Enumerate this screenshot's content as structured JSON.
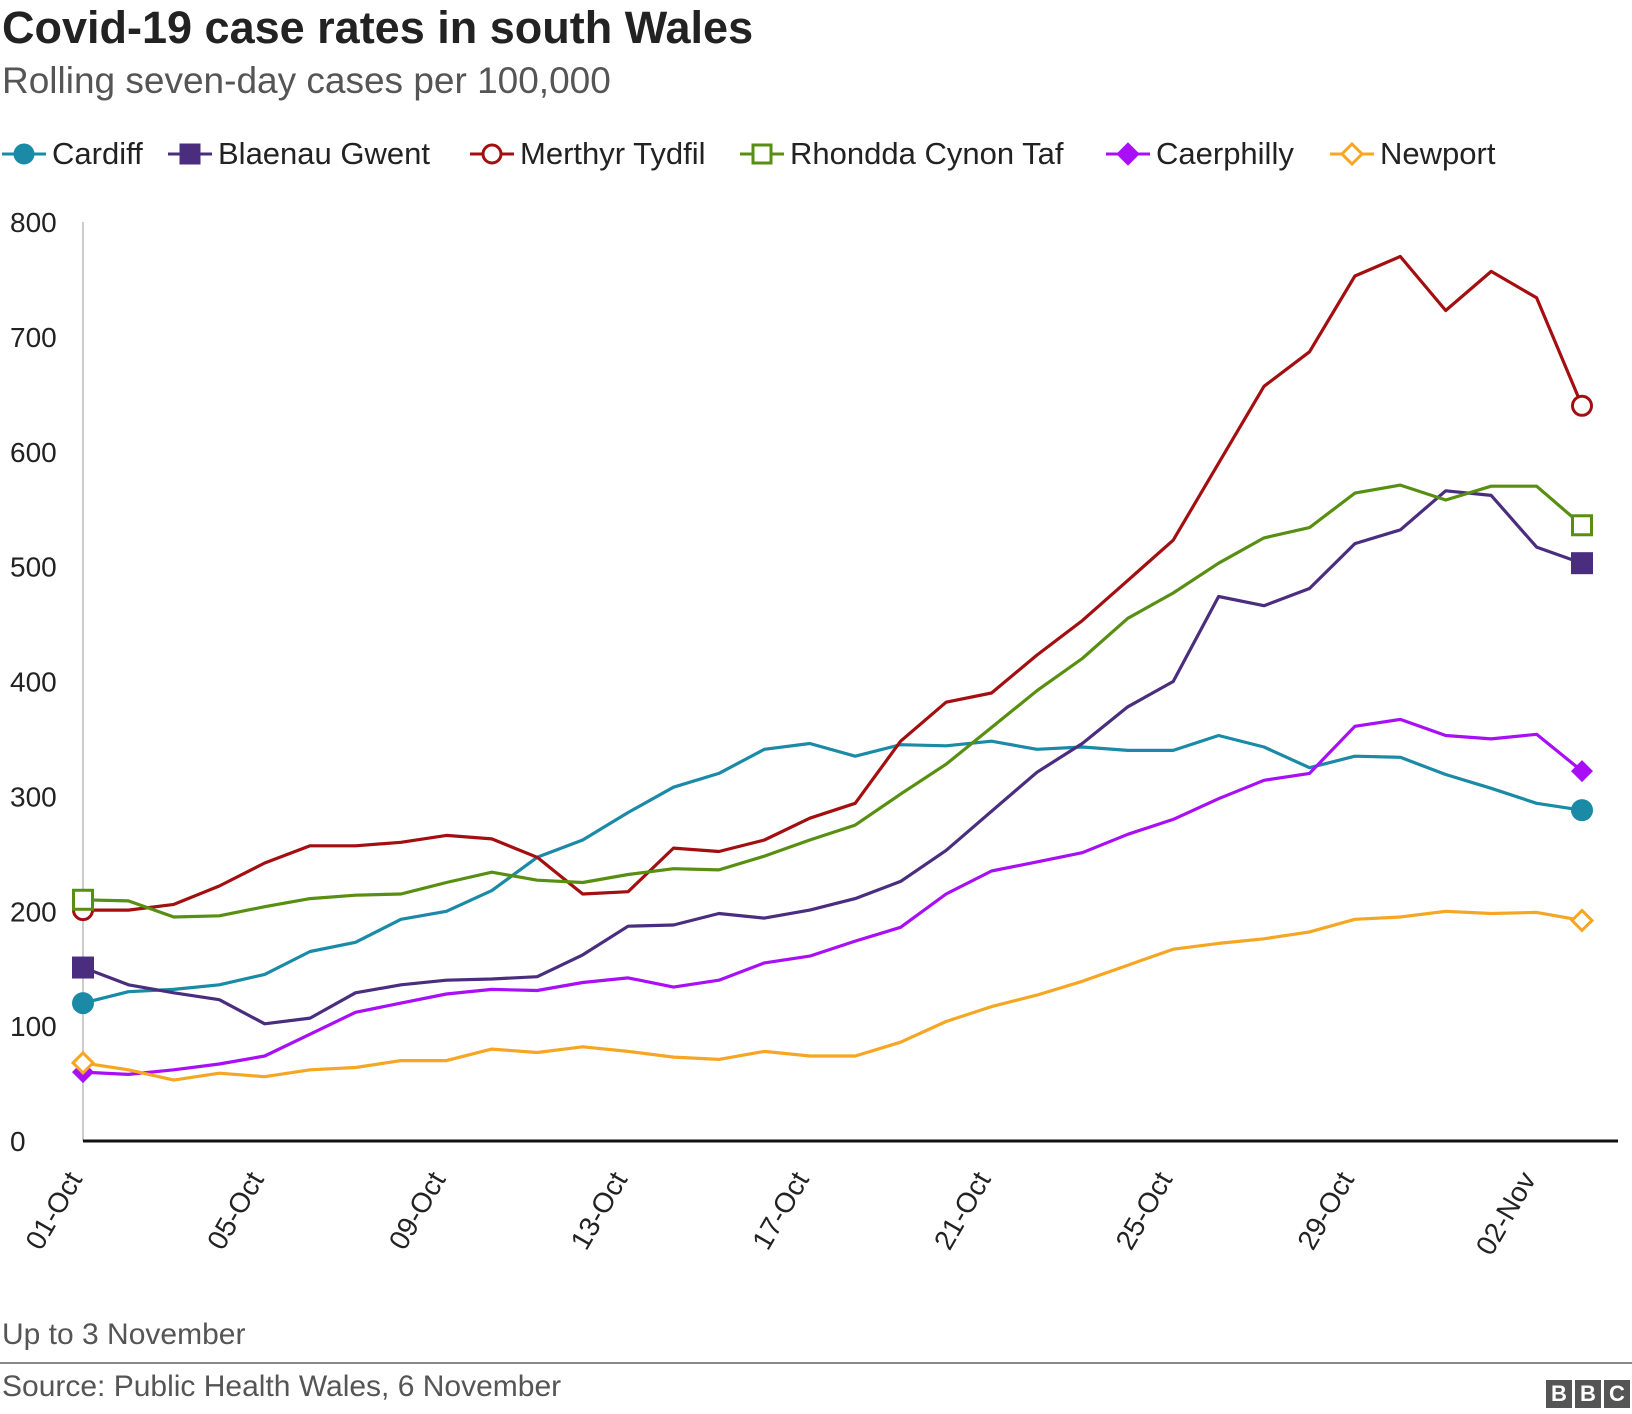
{
  "header": {
    "title": "Covid-19 case rates in south Wales",
    "subtitle": "Rolling seven-day cases per 100,000"
  },
  "footer": {
    "note": "Up to 3 November",
    "source": "Source: Public Health Wales, 6 November",
    "logo_letters": [
      "B",
      "B",
      "C"
    ]
  },
  "colors": {
    "Cardiff": "#1a8aa6",
    "Blaenau Gwent": "#4b2d7f",
    "Merthyr Tydfil": "#a30f11",
    "Rhondda Cynon Taf": "#588f12",
    "Caerphilly": "#a80ff7",
    "Newport": "#f5a623"
  },
  "chart_data": {
    "type": "line",
    "title": "Covid-19 case rates in south Wales",
    "subtitle": "Rolling seven-day cases per 100,000",
    "xlabel": "",
    "ylabel": "",
    "ylim": [
      0,
      800
    ],
    "yticks": [
      0,
      100,
      200,
      300,
      400,
      500,
      600,
      700,
      800
    ],
    "grid": false,
    "legend_position": "top",
    "x": [
      "01-Oct",
      "02-Oct",
      "03-Oct",
      "04-Oct",
      "05-Oct",
      "06-Oct",
      "07-Oct",
      "08-Oct",
      "09-Oct",
      "10-Oct",
      "11-Oct",
      "12-Oct",
      "13-Oct",
      "14-Oct",
      "15-Oct",
      "16-Oct",
      "17-Oct",
      "18-Oct",
      "19-Oct",
      "20-Oct",
      "21-Oct",
      "22-Oct",
      "23-Oct",
      "24-Oct",
      "25-Oct",
      "26-Oct",
      "27-Oct",
      "28-Oct",
      "29-Oct",
      "30-Oct",
      "31-Oct",
      "01-Nov",
      "02-Nov",
      "03-Nov"
    ],
    "x_tick_labels": [
      "01-Oct",
      "05-Oct",
      "09-Oct",
      "13-Oct",
      "17-Oct",
      "21-Oct",
      "25-Oct",
      "29-Oct",
      "02-Nov"
    ],
    "series": [
      {
        "name": "Cardiff",
        "marker": "circle-filled",
        "values": [
          120,
          130,
          132,
          136,
          145,
          165,
          173,
          193,
          200,
          218,
          247,
          262,
          286,
          308,
          320,
          341,
          346,
          335,
          345,
          344,
          348,
          341,
          343,
          340,
          340,
          353,
          343,
          325,
          335,
          334,
          319,
          307,
          294,
          288
        ]
      },
      {
        "name": "Blaenau Gwent",
        "marker": "square-filled",
        "values": [
          151,
          136,
          129,
          123,
          102,
          107,
          129,
          136,
          140,
          141,
          143,
          162,
          187,
          188,
          198,
          194,
          201,
          211,
          226,
          253,
          287,
          321,
          346,
          378,
          400,
          474,
          466,
          481,
          520,
          532,
          566,
          562,
          517,
          503
        ]
      },
      {
        "name": "Merthyr Tydfil",
        "marker": "circle-open",
        "values": [
          201,
          201,
          206,
          222,
          242,
          257,
          257,
          260,
          266,
          263,
          247,
          215,
          217,
          255,
          252,
          262,
          281,
          294,
          348,
          382,
          390,
          423,
          453,
          488,
          523,
          590,
          657,
          687,
          753,
          770,
          723,
          757,
          734,
          640
        ]
      },
      {
        "name": "Rhondda Cynon Taf",
        "marker": "square-open",
        "values": [
          210,
          209,
          195,
          196,
          204,
          211,
          214,
          215,
          225,
          234,
          227,
          225,
          232,
          237,
          236,
          248,
          262,
          275,
          302,
          328,
          360,
          392,
          420,
          455,
          477,
          503,
          525,
          534,
          564,
          571,
          558,
          570,
          570,
          536
        ]
      },
      {
        "name": "Caerphilly",
        "marker": "diamond-filled",
        "values": [
          60,
          58,
          62,
          67,
          74,
          93,
          112,
          120,
          128,
          132,
          131,
          138,
          142,
          134,
          140,
          155,
          161,
          174,
          186,
          215,
          235,
          243,
          251,
          267,
          280,
          298,
          314,
          320,
          361,
          367,
          353,
          350,
          354,
          322
        ]
      },
      {
        "name": "Newport",
        "marker": "diamond-open",
        "values": [
          68,
          62,
          53,
          59,
          56,
          62,
          64,
          70,
          70,
          80,
          77,
          82,
          78,
          73,
          71,
          78,
          74,
          74,
          86,
          104,
          117,
          127,
          139,
          153,
          167,
          172,
          176,
          182,
          193,
          195,
          200,
          198,
          199,
          192
        ]
      }
    ]
  }
}
